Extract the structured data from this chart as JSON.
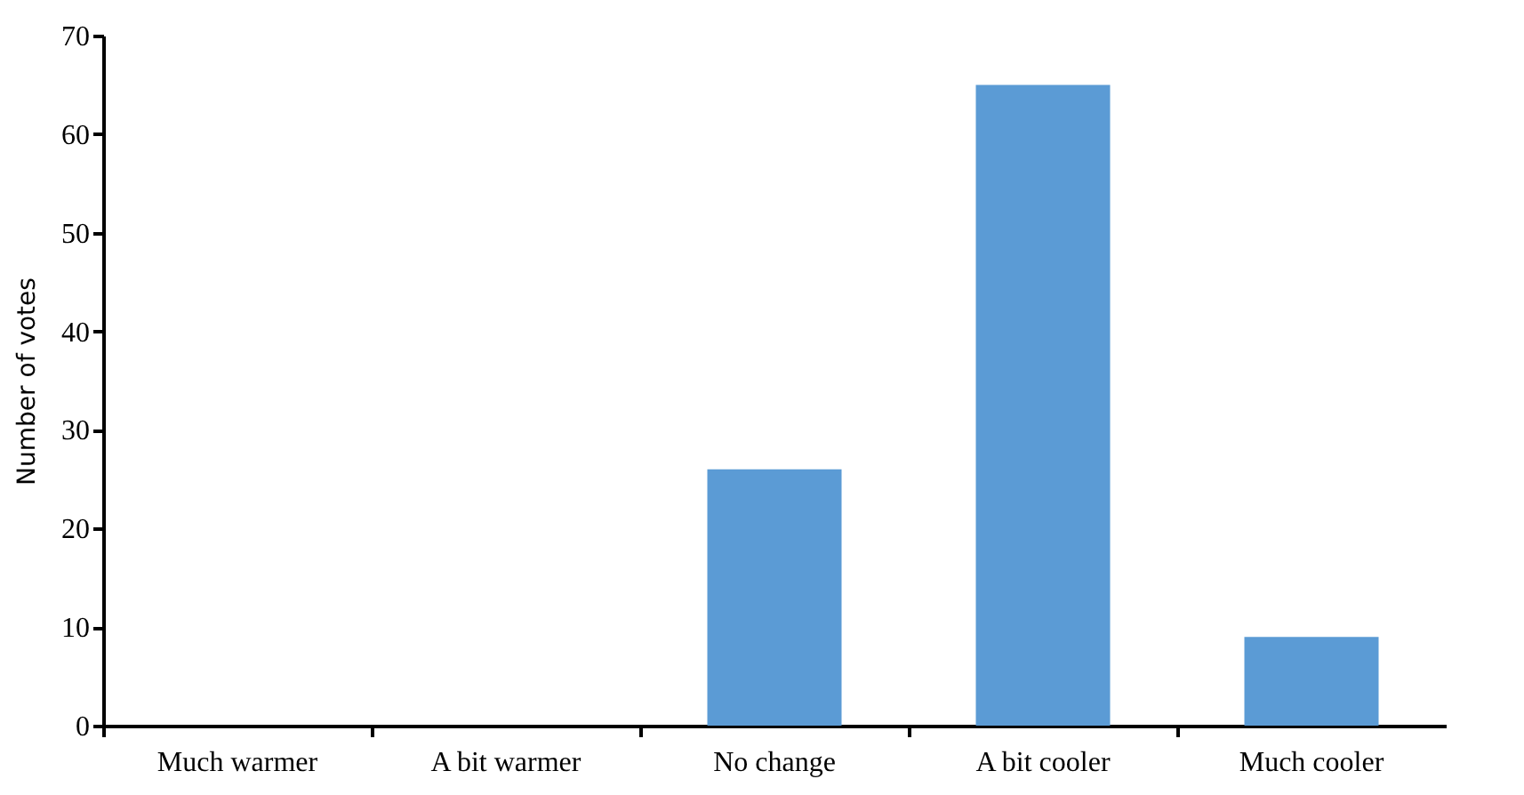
{
  "chart_data": {
    "type": "bar",
    "ylabel": "Number of votes",
    "categories": [
      "Much warmer",
      "A bit warmer",
      "No change",
      "A bit cooler",
      "Much cooler"
    ],
    "values": [
      0,
      0,
      26,
      65,
      9
    ],
    "color": "#5b9bd5",
    "ylim": [
      0,
      70
    ],
    "yticks": [
      0,
      10,
      20,
      30,
      40,
      50,
      60,
      70
    ],
    "grid": false
  }
}
